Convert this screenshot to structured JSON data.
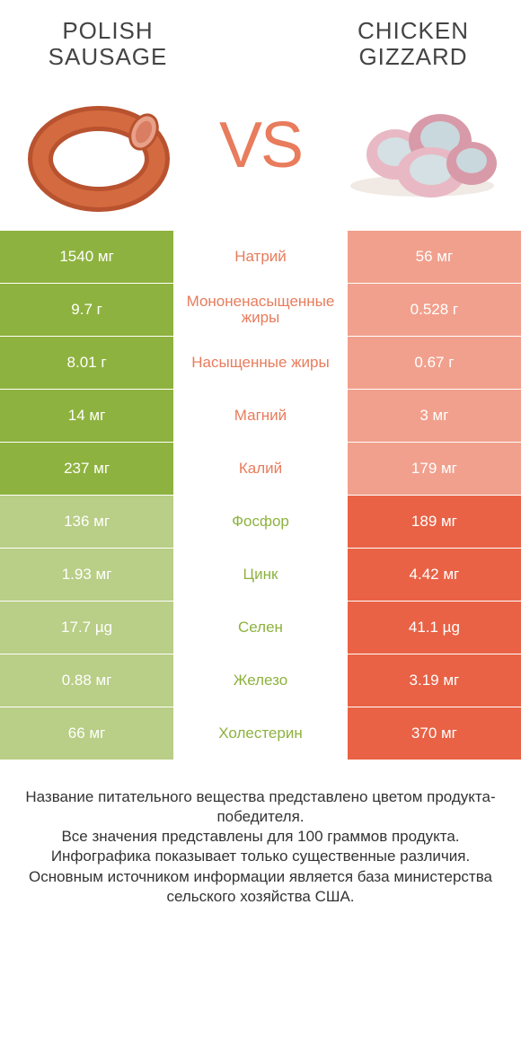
{
  "header": {
    "left_title": "POLISH SAUSAGE",
    "right_title": "CHICKEN GIZZARD",
    "vs": "VS"
  },
  "colors": {
    "left_win": "#8eb23f",
    "left_lose": "#b9ce86",
    "right_win": "#e96245",
    "right_lose": "#f1a08d",
    "mid_left_text": "#e87c5c",
    "mid_right_text": "#8eb23f"
  },
  "rows": [
    {
      "left": "1540 мг",
      "mid": "Натрий",
      "right": "56 мг",
      "winner": "left"
    },
    {
      "left": "9.7 г",
      "mid": "Мононенасыщенные жиры",
      "right": "0.528 г",
      "winner": "left"
    },
    {
      "left": "8.01 г",
      "mid": "Насыщенные жиры",
      "right": "0.67 г",
      "winner": "left"
    },
    {
      "left": "14 мг",
      "mid": "Магний",
      "right": "3 мг",
      "winner": "left"
    },
    {
      "left": "237 мг",
      "mid": "Калий",
      "right": "179 мг",
      "winner": "left"
    },
    {
      "left": "136 мг",
      "mid": "Фосфор",
      "right": "189 мг",
      "winner": "right"
    },
    {
      "left": "1.93 мг",
      "mid": "Цинк",
      "right": "4.42 мг",
      "winner": "right"
    },
    {
      "left": "17.7 µg",
      "mid": "Селен",
      "right": "41.1 µg",
      "winner": "right"
    },
    {
      "left": "0.88 мг",
      "mid": "Железо",
      "right": "3.19 мг",
      "winner": "right"
    },
    {
      "left": "66 мг",
      "mid": "Холестерин",
      "right": "370 мг",
      "winner": "right"
    }
  ],
  "footer": {
    "l1": "Название питательного вещества представлено цветом продукта-победителя.",
    "l2": "Все значения представлены для 100 граммов продукта.",
    "l3": "Инфографика показывает только существенные различия.",
    "l4": "Основным источником информации является база министерства сельского хозяйства США."
  }
}
